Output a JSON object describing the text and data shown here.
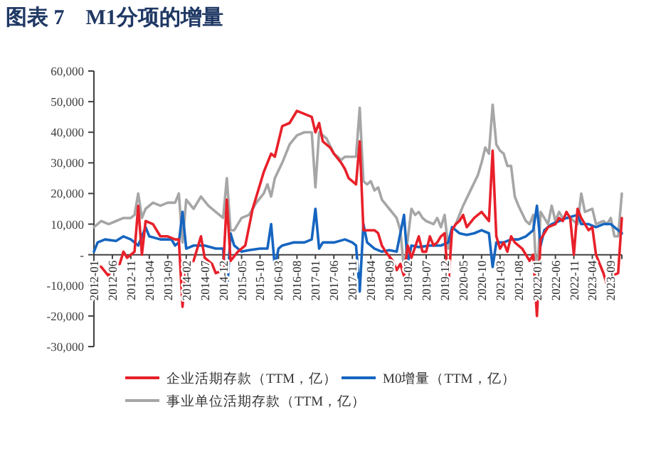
{
  "chart_data": {
    "type": "line",
    "title": "图表 7    M1分项的增量",
    "xlim": [
      "2012-01",
      "2023-12"
    ],
    "xticks": [
      "2012-01",
      "2012-06",
      "2012-11",
      "2013-04",
      "2013-09",
      "2014-02",
      "2014-07",
      "2014-12",
      "2015-05",
      "2015-10",
      "2016-03",
      "2016-08",
      "2017-01",
      "2017-06",
      "2017-11",
      "2018-04",
      "2018-09",
      "2019-02",
      "2019-07",
      "2019-12",
      "2020-05",
      "2020-10",
      "2021-03",
      "2021-08",
      "2022-01",
      "2022-06",
      "2022-11",
      "2023-04",
      "2023-09"
    ],
    "ylim": [
      -30000,
      60000
    ],
    "yticks": [
      {
        "value": -30000,
        "label": "-30,000"
      },
      {
        "value": -20000,
        "label": "-20,000"
      },
      {
        "value": -10000,
        "label": "-10,000"
      },
      {
        "value": 0,
        "label": "-"
      },
      {
        "value": 10000,
        "label": "10,000"
      },
      {
        "value": 20000,
        "label": "20,000"
      },
      {
        "value": 30000,
        "label": "30,000"
      },
      {
        "value": 40000,
        "label": "40,000"
      },
      {
        "value": 50000,
        "label": "50,000"
      },
      {
        "value": 60000,
        "label": "60,000"
      }
    ],
    "grid": false,
    "legend": "bottom",
    "marker": "none",
    "line_style": "solid",
    "series": [
      {
        "name": "企业活期存款（TTM，亿）",
        "color": "#e8202a",
        "x": [
          "2012-01",
          "2012-03",
          "2012-05",
          "2012-06",
          "2012-08",
          "2012-09",
          "2012-10",
          "2012-12",
          "2013-01",
          "2013-02",
          "2013-03",
          "2013-05",
          "2013-07",
          "2013-09",
          "2013-11",
          "2013-12",
          "2014-01",
          "2014-02",
          "2014-04",
          "2014-06",
          "2014-07",
          "2014-09",
          "2014-10",
          "2014-12",
          "2015-01",
          "2015-02",
          "2015-04",
          "2015-06",
          "2015-08",
          "2015-11",
          "2016-01",
          "2016-02",
          "2016-04",
          "2016-06",
          "2016-08",
          "2016-10",
          "2016-12",
          "2017-01",
          "2017-02",
          "2017-03",
          "2017-05",
          "2017-06",
          "2017-08",
          "2017-09",
          "2017-10",
          "2017-11",
          "2017-12",
          "2018-01",
          "2018-02",
          "2018-05",
          "2018-06",
          "2018-07",
          "2018-08",
          "2018-10",
          "2018-11",
          "2018-12",
          "2019-01",
          "2019-02",
          "2019-03",
          "2019-05",
          "2019-06",
          "2019-07",
          "2019-08",
          "2019-09",
          "2019-10",
          "2019-11",
          "2019-12",
          "2020-01",
          "2020-02",
          "2020-03",
          "2020-04",
          "2020-05",
          "2020-06",
          "2020-08",
          "2020-10",
          "2020-12",
          "2021-01",
          "2021-02",
          "2021-03",
          "2021-04",
          "2021-05",
          "2021-06",
          "2021-07",
          "2021-09",
          "2021-10",
          "2021-11",
          "2021-12",
          "2022-01",
          "2022-02",
          "2022-04",
          "2022-06",
          "2022-07",
          "2022-08",
          "2022-09",
          "2022-10",
          "2022-11",
          "2022-12",
          "2023-01",
          "2023-02",
          "2023-03",
          "2023-04",
          "2023-05",
          "2023-06",
          "2023-07",
          "2023-08",
          "2023-09",
          "2023-11",
          "2023-12"
        ],
        "values": [
          -3000,
          -4000,
          -7000,
          -3000,
          -3000,
          1000,
          -1000,
          1000,
          16000,
          0,
          11000,
          10000,
          6000,
          6000,
          5000,
          5000,
          -17000,
          -3000,
          -2000,
          6000,
          -1000,
          -3000,
          -6000,
          -5000,
          18000,
          -2000,
          1000,
          3000,
          15000,
          27000,
          33000,
          32000,
          42000,
          43000,
          47000,
          46000,
          45000,
          40000,
          43000,
          37000,
          35000,
          33000,
          30000,
          28000,
          25000,
          24000,
          23000,
          37000,
          8000,
          8000,
          7000,
          3000,
          1000,
          -2000,
          -5000,
          -3000,
          -7000,
          3000,
          -1000,
          6000,
          1000,
          1000,
          6000,
          3000,
          4000,
          6000,
          7000,
          -10000,
          8000,
          10000,
          11000,
          13000,
          9000,
          12000,
          14000,
          11000,
          34000,
          6000,
          2000,
          4000,
          1000,
          6000,
          4000,
          2000,
          0,
          -2000,
          0,
          -20000,
          5000,
          9000,
          10000,
          12000,
          11000,
          14000,
          12000,
          0,
          15000,
          12000,
          10000,
          8000,
          9000,
          0,
          -3000,
          -6000,
          -10000,
          -7000,
          -6000,
          12000
        ]
      },
      {
        "name": "M0增量（TTM，亿）",
        "color": "#1565c0",
        "x": [
          "2012-01",
          "2012-02",
          "2012-04",
          "2012-07",
          "2012-09",
          "2012-11",
          "2013-01",
          "2013-03",
          "2013-04",
          "2013-07",
          "2013-10",
          "2013-11",
          "2013-12",
          "2014-01",
          "2014-02",
          "2014-04",
          "2014-07",
          "2014-10",
          "2014-12",
          "2015-01",
          "2015-02",
          "2015-03",
          "2015-05",
          "2015-07",
          "2015-10",
          "2015-12",
          "2016-01",
          "2016-02",
          "2016-03",
          "2016-04",
          "2016-07",
          "2016-10",
          "2016-12",
          "2017-01",
          "2017-02",
          "2017-03",
          "2017-06",
          "2017-09",
          "2017-11",
          "2017-12",
          "2018-01",
          "2018-02",
          "2018-03",
          "2018-05",
          "2018-07",
          "2018-09",
          "2018-11",
          "2019-01",
          "2019-02",
          "2019-03",
          "2019-05",
          "2019-08",
          "2019-11",
          "2020-01",
          "2020-02",
          "2020-04",
          "2020-06",
          "2020-08",
          "2020-10",
          "2020-12",
          "2021-01",
          "2021-02",
          "2021-04",
          "2021-06",
          "2021-08",
          "2021-10",
          "2021-12",
          "2022-01",
          "2022-02",
          "2022-03",
          "2022-05",
          "2022-07",
          "2022-09",
          "2022-12",
          "2023-01",
          "2023-03",
          "2023-05",
          "2023-07",
          "2023-09",
          "2023-11",
          "2023-12"
        ],
        "values": [
          1000,
          4000,
          5000,
          4500,
          6000,
          5000,
          3000,
          9000,
          6000,
          5000,
          5000,
          3000,
          4000,
          14000,
          2000,
          3000,
          3000,
          2000,
          2000,
          -14000,
          7000,
          3000,
          1000,
          1500,
          2000,
          2000,
          10000,
          -4000,
          2000,
          3000,
          4000,
          4000,
          5000,
          15000,
          2000,
          4000,
          4000,
          5000,
          4000,
          3000,
          -12000,
          10000,
          4000,
          2000,
          1000,
          1500,
          1000,
          13000,
          -3000,
          3000,
          2500,
          3000,
          3000,
          4000,
          9000,
          7000,
          6500,
          7000,
          8000,
          7000,
          -4000,
          4000,
          4000,
          5000,
          5000,
          6000,
          8000,
          16000,
          3000,
          8000,
          10000,
          11000,
          12000,
          13000,
          10000,
          10000,
          9000,
          10000,
          10000,
          8000,
          7000
        ]
      },
      {
        "name": "事业单位活期存款（TTM，亿）",
        "color": "#a6a6a6",
        "x": [
          "2012-01",
          "2012-03",
          "2012-05",
          "2012-07",
          "2012-09",
          "2012-11",
          "2012-12",
          "2013-01",
          "2013-02",
          "2013-03",
          "2013-05",
          "2013-07",
          "2013-09",
          "2013-11",
          "2013-12",
          "2014-01",
          "2014-02",
          "2014-04",
          "2014-06",
          "2014-08",
          "2014-10",
          "2014-12",
          "2015-01",
          "2015-02",
          "2015-03",
          "2015-05",
          "2015-07",
          "2015-09",
          "2015-11",
          "2015-12",
          "2016-01",
          "2016-02",
          "2016-04",
          "2016-06",
          "2016-08",
          "2016-10",
          "2016-12",
          "2017-01",
          "2017-02",
          "2017-04",
          "2017-06",
          "2017-08",
          "2017-09",
          "2017-12",
          "2018-01",
          "2018-02",
          "2018-03",
          "2018-04",
          "2018-05",
          "2018-06",
          "2018-07",
          "2018-09",
          "2018-11",
          "2018-12",
          "2019-01",
          "2019-02",
          "2019-03",
          "2019-04",
          "2019-05",
          "2019-06",
          "2019-07",
          "2019-09",
          "2019-10",
          "2019-11",
          "2019-12",
          "2020-01",
          "2020-02",
          "2020-03",
          "2020-05",
          "2020-07",
          "2020-09",
          "2020-10",
          "2020-11",
          "2020-12",
          "2021-01",
          "2021-02",
          "2021-03",
          "2021-04",
          "2021-05",
          "2021-06",
          "2021-07",
          "2021-08",
          "2021-10",
          "2021-11",
          "2021-12",
          "2022-01",
          "2022-02",
          "2022-03",
          "2022-04",
          "2022-05",
          "2022-06",
          "2022-07",
          "2022-08",
          "2022-10",
          "2022-12",
          "2023-01",
          "2023-02",
          "2023-04",
          "2023-05",
          "2023-07",
          "2023-08",
          "2023-09",
          "2023-10",
          "2023-11",
          "2023-12"
        ],
        "values": [
          9000,
          11000,
          10000,
          11000,
          12000,
          12000,
          13000,
          20000,
          12000,
          15000,
          17000,
          16000,
          17000,
          17000,
          20000,
          4000,
          18000,
          15000,
          19000,
          16000,
          14000,
          12000,
          25000,
          8000,
          8000,
          12000,
          13000,
          17000,
          20000,
          23000,
          19000,
          25000,
          30000,
          36000,
          39000,
          40000,
          40000,
          22000,
          40000,
          38000,
          33000,
          31000,
          32000,
          32000,
          48000,
          24000,
          23000,
          24000,
          21000,
          22000,
          18000,
          15000,
          12000,
          8000,
          -5000,
          5000,
          15000,
          13000,
          14000,
          12000,
          11000,
          10000,
          12000,
          9000,
          13000,
          2000,
          8000,
          10000,
          16000,
          21000,
          26000,
          30000,
          35000,
          33000,
          49000,
          36000,
          34000,
          33000,
          29000,
          29000,
          19000,
          16000,
          11000,
          10000,
          13000,
          -9000,
          14000,
          12000,
          10000,
          16000,
          11000,
          14000,
          12000,
          12000,
          10000,
          20000,
          14000,
          15000,
          10000,
          11000,
          10000,
          12000,
          6000,
          6000,
          20000
        ]
      }
    ]
  }
}
